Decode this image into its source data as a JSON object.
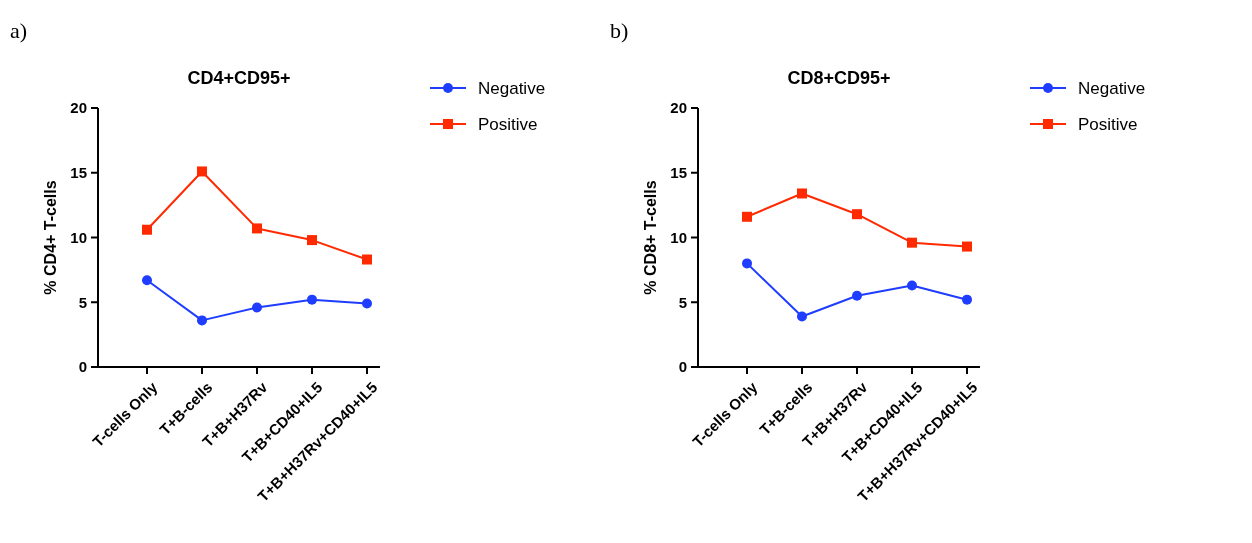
{
  "chart_data": [
    {
      "type": "line",
      "title": "CD4+CD95+",
      "ylabel": "% CD4+ T-cells",
      "annotations": [
        "a)"
      ],
      "categories": [
        "T-cells Only",
        "T+B-cells",
        "T+B+H37Rv",
        "T+B+CD40+IL5",
        "T+B+H37Rv+CD40+IL5"
      ],
      "ylim": [
        0,
        20
      ],
      "yticks": [
        0,
        5,
        10,
        15,
        20
      ],
      "grid": false,
      "legend": "top right",
      "line_style": "solid",
      "series": [
        {
          "name": "Negative",
          "color": "#1f3dff",
          "marker": "circle",
          "values": [
            6.7,
            3.6,
            4.6,
            5.2,
            4.9
          ]
        },
        {
          "name": "Positive",
          "color": "#ff2a00",
          "marker": "square",
          "values": [
            10.6,
            15.1,
            10.7,
            9.8,
            8.3
          ]
        }
      ]
    },
    {
      "type": "line",
      "title": "CD8+CD95+",
      "ylabel": "% CD8+ T-cells",
      "annotations": [
        "b)"
      ],
      "categories": [
        "T-cells Only",
        "T+B-cells",
        "T+B+H37Rv",
        "T+B+CD40+IL5",
        "T+B+H37Rv+CD40+IL5"
      ],
      "ylim": [
        0,
        20
      ],
      "yticks": [
        0,
        5,
        10,
        15,
        20
      ],
      "grid": false,
      "legend": "top right",
      "line_style": "solid",
      "series": [
        {
          "name": "Negative",
          "color": "#1f3dff",
          "marker": "circle",
          "values": [
            8.0,
            3.9,
            5.5,
            6.3,
            5.2
          ]
        },
        {
          "name": "Positive",
          "color": "#ff2a00",
          "marker": "square",
          "values": [
            11.6,
            13.4,
            11.8,
            9.6,
            9.3
          ]
        }
      ]
    }
  ]
}
